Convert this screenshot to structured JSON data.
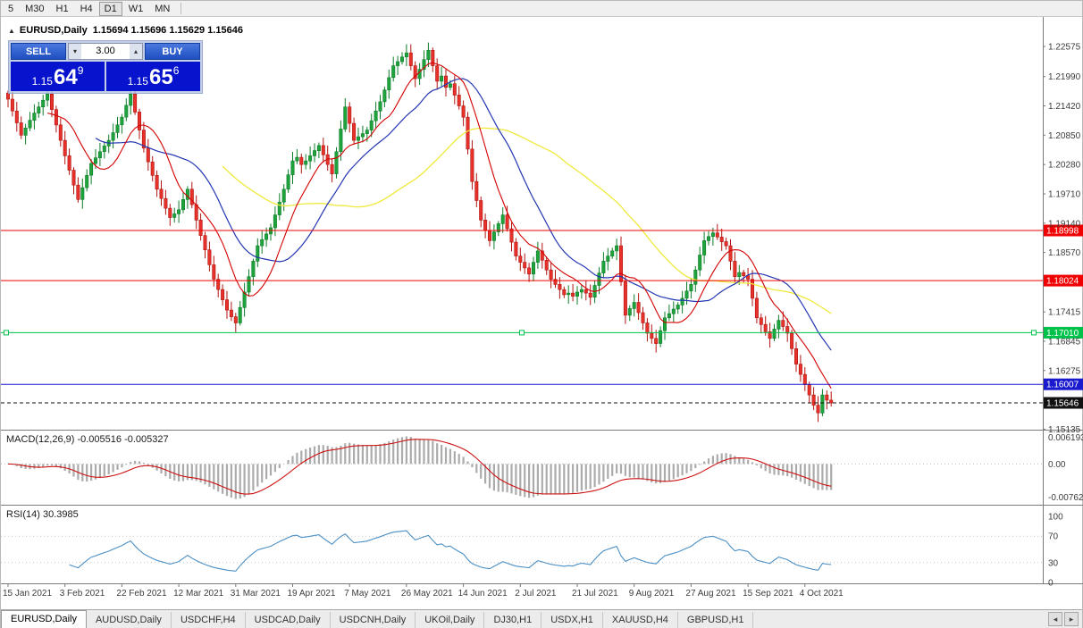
{
  "toolbar": {
    "timeframes": [
      "5",
      "M30",
      "H1",
      "H4",
      "D1",
      "W1",
      "MN"
    ],
    "active": "D1"
  },
  "chart": {
    "symbol_title": "EURUSD,Daily",
    "ohlc_text": "1.15694 1.15696 1.15629 1.15646"
  },
  "icons": {
    "collapse": "▲",
    "lot_down": "▾",
    "lot_up": "▴",
    "tab_scroll_left": "◂",
    "tab_scroll_right": "▸"
  },
  "trade_panel": {
    "sell_label": "SELL",
    "buy_label": "BUY",
    "lot_size": "3.00",
    "sell_price": {
      "prefix": "1.15",
      "big": "64",
      "sup": "9"
    },
    "buy_price": {
      "prefix": "1.15",
      "big": "65",
      "sup": "6"
    }
  },
  "levels": [
    {
      "price": 1.18998,
      "label": "1.18998",
      "color": "#f00000",
      "text_color": "#ffffff"
    },
    {
      "price": 1.18024,
      "label": "1.18024",
      "color": "#f00000",
      "text_color": "#ffffff"
    },
    {
      "price": 1.1701,
      "label": "1.17010",
      "color": "#00c24b",
      "text_color": "#ffffff",
      "handles": true
    },
    {
      "price": 1.16007,
      "label": "1.16007",
      "color": "#1919cd",
      "text_color": "#ffffff"
    },
    {
      "price": 1.15646,
      "label": "1.15646",
      "color": "#111111",
      "text_color": "#ffffff",
      "dashed": true
    }
  ],
  "y_axis": {
    "labels": [
      "1.22575",
      "1.21990",
      "1.21420",
      "1.20850",
      "1.20280",
      "1.19710",
      "1.19140",
      "1.18570",
      "1.17415",
      "1.16845",
      "1.16275",
      "1.15135"
    ]
  },
  "x_axis": {
    "labels": [
      "15 Jan 2021",
      "3 Feb 2021",
      "22 Feb 2021",
      "12 Mar 2021",
      "31 Mar 2021",
      "19 Apr 2021",
      "7 May 2021",
      "26 May 2021",
      "14 Jun 2021",
      "2 Jul 2021",
      "21 Jul 2021",
      "9 Aug 2021",
      "27 Aug 2021",
      "15 Sep 2021",
      "4 Oct 2021"
    ]
  },
  "macd": {
    "label": "MACD(12,26,9)",
    "values_text": "-0.005516 -0.005327",
    "axis": [
      "0.006193",
      "0.00",
      "-0.007621"
    ]
  },
  "rsi": {
    "label": "RSI(14)",
    "value_text": "30.3985",
    "axis": [
      "100",
      "70",
      "30",
      "0"
    ],
    "guide_levels": [
      70,
      30
    ]
  },
  "tabbar": {
    "tabs": [
      "EURUSD,Daily",
      "AUDUSD,Daily",
      "USDCHF,H4",
      "USDCAD,Daily",
      "USDCNH,Daily",
      "UKOil,Daily",
      "DJ30,H1",
      "USDX,H1",
      "XAUUSD,H4",
      "GBPUSD,H1"
    ]
  },
  "chart_data": {
    "type": "candlestick",
    "symbol": "EURUSD",
    "timeframe": "Daily",
    "x_labels": [
      "15 Jan 2021",
      "3 Feb 2021",
      "22 Feb 2021",
      "12 Mar 2021",
      "31 Mar 2021",
      "19 Apr 2021",
      "7 May 2021",
      "26 May 2021",
      "14 Jun 2021",
      "2 Jul 2021",
      "21 Jul 2021",
      "9 Aug 2021",
      "27 Aug 2021",
      "15 Sep 2021",
      "4 Oct 2021"
    ],
    "x_label_step": 13,
    "price_axis_range": [
      1.1525,
      1.2294
    ],
    "closes": [
      1.2155,
      1.2132,
      1.2109,
      1.2085,
      1.2099,
      1.2114,
      1.2128,
      1.214,
      1.2153,
      1.2165,
      1.2135,
      1.2105,
      1.2075,
      1.2045,
      1.2017,
      1.1988,
      1.196,
      1.1983,
      1.2007,
      1.203,
      1.2041,
      1.2053,
      1.2064,
      1.2075,
      1.209,
      1.2105,
      1.212,
      1.2143,
      1.2165,
      1.213,
      1.2095,
      1.206,
      1.2033,
      1.2007,
      1.198,
      1.1962,
      1.1943,
      1.1925,
      1.1932,
      1.194,
      1.196,
      1.198,
      1.195,
      1.192,
      1.189,
      1.1862,
      1.1833,
      1.1805,
      1.1785,
      1.1765,
      1.1745,
      1.1732,
      1.172,
      1.175,
      1.178,
      1.181,
      1.184,
      1.187,
      1.1882,
      1.1893,
      1.1905,
      1.193,
      1.1955,
      1.198,
      1.2008,
      1.2035,
      1.2042,
      1.2028,
      1.2035,
      1.2045,
      1.2055,
      1.2065,
      1.2047,
      1.2028,
      1.201,
      1.2053,
      1.2097,
      1.214,
      1.2108,
      1.2075,
      1.2082,
      1.2088,
      1.2095,
      1.2113,
      1.2132,
      1.215,
      1.2173,
      1.2197,
      1.222,
      1.2228,
      1.2237,
      1.2245,
      1.222,
      1.2195,
      1.2213,
      1.2232,
      1.225,
      1.222,
      1.219,
      1.22,
      1.2178,
      1.2185,
      1.2163,
      1.2142,
      1.212,
      1.2058,
      1.1995,
      1.1958,
      1.192,
      1.19,
      1.188,
      1.1897,
      1.1913,
      1.193,
      1.1903,
      1.1877,
      1.185,
      1.1838,
      1.1827,
      1.1815,
      1.1838,
      1.186,
      1.1842,
      1.1823,
      1.1805,
      1.1795,
      1.1785,
      1.1775,
      1.1778,
      1.1772,
      1.178,
      1.1785,
      1.1778,
      1.177,
      1.1793,
      1.1817,
      1.184,
      1.185,
      1.186,
      1.187,
      1.18,
      1.1735,
      1.1748,
      1.176,
      1.174,
      1.172,
      1.17,
      1.169,
      1.168,
      1.1705,
      1.173,
      1.1738,
      1.1747,
      1.1755,
      1.1768,
      1.1782,
      1.1795,
      1.1823,
      1.1852,
      1.188,
      1.1888,
      1.1895,
      1.1887,
      1.1878,
      1.187,
      1.184,
      1.181,
      1.1818,
      1.1812,
      1.1805,
      1.1768,
      1.173,
      1.1717,
      1.1703,
      1.169,
      1.1708,
      1.1725,
      1.1713,
      1.17,
      1.167,
      1.164,
      1.162,
      1.16,
      1.158,
      1.156,
      1.1545,
      1.158,
      1.157,
      1.15646
    ],
    "moving_averages": [
      {
        "period": 10,
        "color": "#d40000"
      },
      {
        "period": 21,
        "color": "#2336b2"
      },
      {
        "period": 50,
        "color": "#efe93a"
      }
    ],
    "horizontal_levels": [
      1.18998,
      1.18024,
      1.1701,
      1.16007
    ],
    "current_price": 1.15646,
    "indicators": [
      {
        "type": "MACD",
        "params": [
          12,
          26,
          9
        ],
        "values": [
          -0.005516,
          -0.005327
        ],
        "axis_range": [
          -0.009,
          0.0075
        ]
      },
      {
        "type": "RSI",
        "params": [
          14
        ],
        "value": 30.3985,
        "axis_range": [
          0,
          100
        ],
        "guide_levels": [
          70,
          30
        ]
      }
    ]
  }
}
